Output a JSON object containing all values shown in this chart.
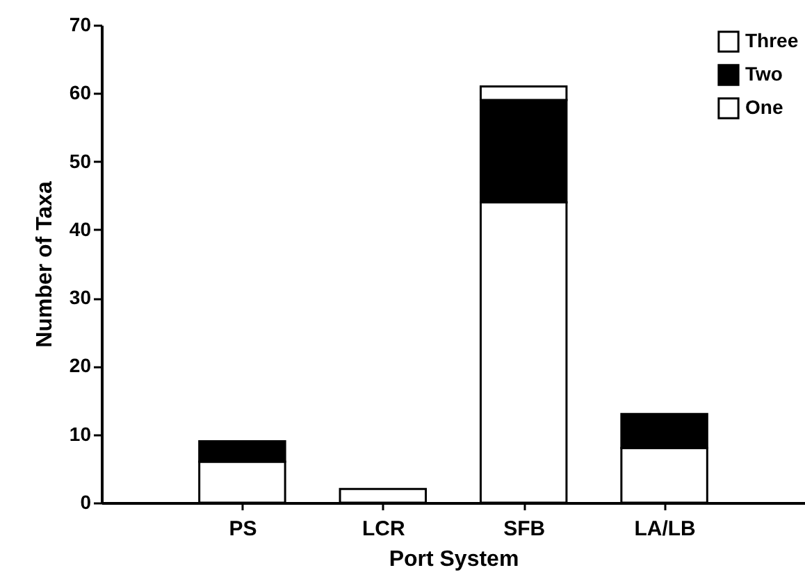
{
  "chart_data": {
    "type": "bar",
    "stacked": true,
    "xlabel": "Port System",
    "ylabel": "Number of Taxa",
    "categories": [
      "PS",
      "LCR",
      "SFB",
      "LA/LB"
    ],
    "series": [
      {
        "name": "One",
        "color": "#ffffff",
        "values": [
          6,
          2,
          44,
          8
        ]
      },
      {
        "name": "Two",
        "color": "#000000",
        "values": [
          3,
          0,
          15,
          5
        ]
      },
      {
        "name": "Three",
        "color": "#ffffff",
        "values": [
          0,
          0,
          2,
          0
        ]
      }
    ],
    "ylim": [
      0,
      70
    ],
    "yticks": [
      0,
      10,
      20,
      30,
      40,
      50,
      60,
      70
    ],
    "grid": false,
    "legend": "top right"
  }
}
